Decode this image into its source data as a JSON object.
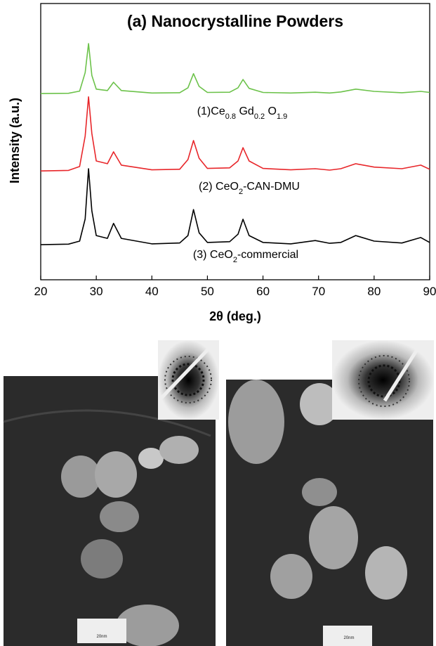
{
  "chart_data": {
    "type": "line",
    "title": "(a) Nanocrystalline Powders",
    "xlabel": "2θ (deg.)",
    "ylabel": "Intensity (a.u.)",
    "xlim": [
      20,
      90
    ],
    "xticks": [
      20,
      30,
      40,
      50,
      60,
      70,
      80,
      90
    ],
    "ylim": [
      0,
      100
    ],
    "x": [
      20,
      25,
      27,
      28,
      28.6,
      29.2,
      30,
      32,
      33.1,
      34.5,
      40,
      45,
      46.5,
      47.5,
      48.5,
      50,
      54,
      55.5,
      56.4,
      57.5,
      60,
      65,
      69.4,
      72,
      74,
      76.7,
      80,
      85,
      88.4,
      90
    ],
    "series": [
      {
        "color": "#6cc24a",
        "values": [
          67.4,
          67.5,
          68.3,
          75,
          85.5,
          74,
          69,
          68.5,
          71.5,
          68.5,
          67.6,
          67.7,
          69.5,
          74.6,
          70,
          67.8,
          67.9,
          69.5,
          72.5,
          69.3,
          67.8,
          67.6,
          67.9,
          67.6,
          68,
          69,
          68.2,
          67.7,
          68.2,
          67.8
        ]
      },
      {
        "color": "#e8262a",
        "values": [
          39.4,
          39.6,
          41,
          52,
          66.2,
          53,
          43,
          42,
          46.3,
          41.5,
          39.8,
          40,
          43.5,
          50.4,
          44,
          40.3,
          40.5,
          43,
          47.8,
          43,
          40.3,
          39.8,
          40.2,
          39.7,
          40.2,
          42,
          40.8,
          40.2,
          41.5,
          40
        ]
      },
      {
        "color": "#000000",
        "values": [
          12.7,
          12.9,
          14,
          22,
          40.2,
          25,
          16,
          15,
          20.4,
          15,
          13,
          13.3,
          16,
          25.4,
          17,
          13.5,
          13.8,
          16.5,
          21.9,
          16,
          13.5,
          13,
          14.2,
          13.2,
          13.5,
          16,
          14,
          13.3,
          15.3,
          13.5
        ]
      }
    ],
    "annotations": [
      {
        "parts": [
          {
            "text": "(1)Ce"
          },
          {
            "text": "0.8",
            "sub": true
          },
          {
            "text": " Gd"
          },
          {
            "text": "0.2",
            "sub": true
          },
          {
            "text": " O"
          },
          {
            "text": "1.9",
            "sub": true
          }
        ]
      },
      {
        "parts": [
          {
            "text": "(2) CeO"
          },
          {
            "text": "2",
            "sub": true
          },
          {
            "text": "-CAN-DMU"
          }
        ]
      },
      {
        "parts": [
          {
            "text": "(3) CeO"
          },
          {
            "text": "2",
            "sub": true
          },
          {
            "text": "-commercial"
          }
        ]
      }
    ]
  },
  "images": [
    {
      "scale_label": "20nm"
    },
    {
      "scale_label": "20nm"
    }
  ]
}
